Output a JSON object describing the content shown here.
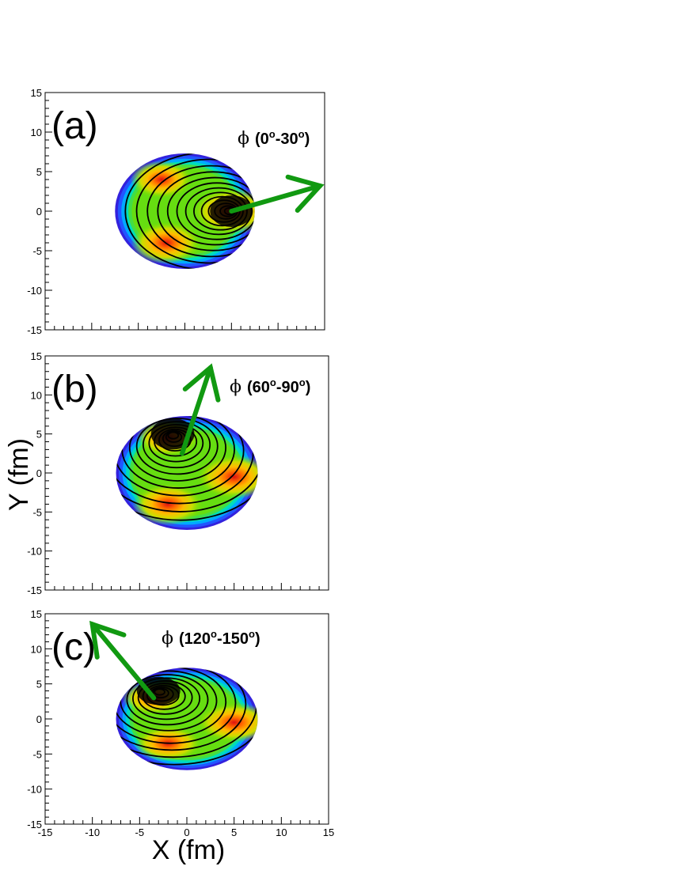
{
  "figure": {
    "xlabel": "X (fm)",
    "ylabel": "Y (fm)"
  },
  "chart_data": [
    {
      "type": "heatmap",
      "panel_label": "(a)",
      "annotation_prefix": "ϕ",
      "annotation_text": "(0°-30°)",
      "annotation_parts": [
        "(0",
        "o",
        "-30",
        "o",
        ")"
      ],
      "xlim": [
        -15,
        15
      ],
      "ylim": [
        -15,
        15
      ],
      "xticks": [
        -15,
        -10,
        -5,
        0,
        5,
        10,
        15
      ],
      "yticks": [
        -15,
        -10,
        -5,
        0,
        5,
        10,
        15
      ],
      "show_x_tick_labels": false,
      "source_ellipse": {
        "cx": 0,
        "cy": 0,
        "rx": 7.5,
        "ry": 7.3
      },
      "hot_spots": [
        {
          "x": -2,
          "y": -4,
          "level": 0.9
        },
        {
          "x": -2.5,
          "y": 4,
          "level": 0.8
        },
        {
          "x": 5,
          "y": 0,
          "level": 1.0
        }
      ],
      "contour_peak": {
        "x": 5,
        "y": 0
      },
      "arrow": {
        "from": [
          5,
          0
        ],
        "to": [
          14.5,
          3.2
        ],
        "color": "#119911"
      }
    },
    {
      "type": "heatmap",
      "panel_label": "(b)",
      "annotation_prefix": "ϕ",
      "annotation_text": "(60°-90°)",
      "annotation_parts": [
        "(60",
        "o",
        "-90",
        "o",
        ")"
      ],
      "xlim": [
        -15,
        15
      ],
      "ylim": [
        -15,
        15
      ],
      "xticks": [
        -15,
        -10,
        -5,
        0,
        5,
        10,
        15
      ],
      "yticks": [
        -15,
        -10,
        -5,
        0,
        5,
        10,
        15
      ],
      "show_x_tick_labels": false,
      "source_ellipse": {
        "cx": 0,
        "cy": 0,
        "rx": 7.5,
        "ry": 7.3
      },
      "hot_spots": [
        {
          "x": -2,
          "y": -4,
          "level": 0.9
        },
        {
          "x": -2,
          "y": 4.5,
          "level": 0.8
        },
        {
          "x": 5,
          "y": -0.5,
          "level": 0.95
        }
      ],
      "contour_peak": {
        "x": -1.5,
        "y": 5
      },
      "arrow": {
        "from": [
          -0.5,
          2.5
        ],
        "to": [
          2.5,
          13.5
        ],
        "color": "#119911"
      }
    },
    {
      "type": "heatmap",
      "panel_label": "(c)",
      "annotation_prefix": "ϕ",
      "annotation_text": "(120°-150°)",
      "annotation_parts": [
        "(120",
        "o",
        "-150",
        "o",
        ")"
      ],
      "xlim": [
        -15,
        15
      ],
      "ylim": [
        -15,
        15
      ],
      "xticks": [
        -15,
        -10,
        -5,
        0,
        5,
        10,
        15
      ],
      "yticks": [
        -15,
        -10,
        -5,
        0,
        5,
        10,
        15
      ],
      "show_x_tick_labels": true,
      "source_ellipse": {
        "cx": 0,
        "cy": 0,
        "rx": 7.5,
        "ry": 7.3
      },
      "hot_spots": [
        {
          "x": -2,
          "y": -3.5,
          "level": 0.85
        },
        {
          "x": -3.5,
          "y": 3,
          "level": 0.8
        },
        {
          "x": 5,
          "y": -0.5,
          "level": 0.95
        }
      ],
      "contour_peak": {
        "x": -3,
        "y": 4
      },
      "arrow": {
        "from": [
          -3.5,
          3
        ],
        "to": [
          -10,
          13.5
        ],
        "color": "#119911"
      }
    }
  ]
}
